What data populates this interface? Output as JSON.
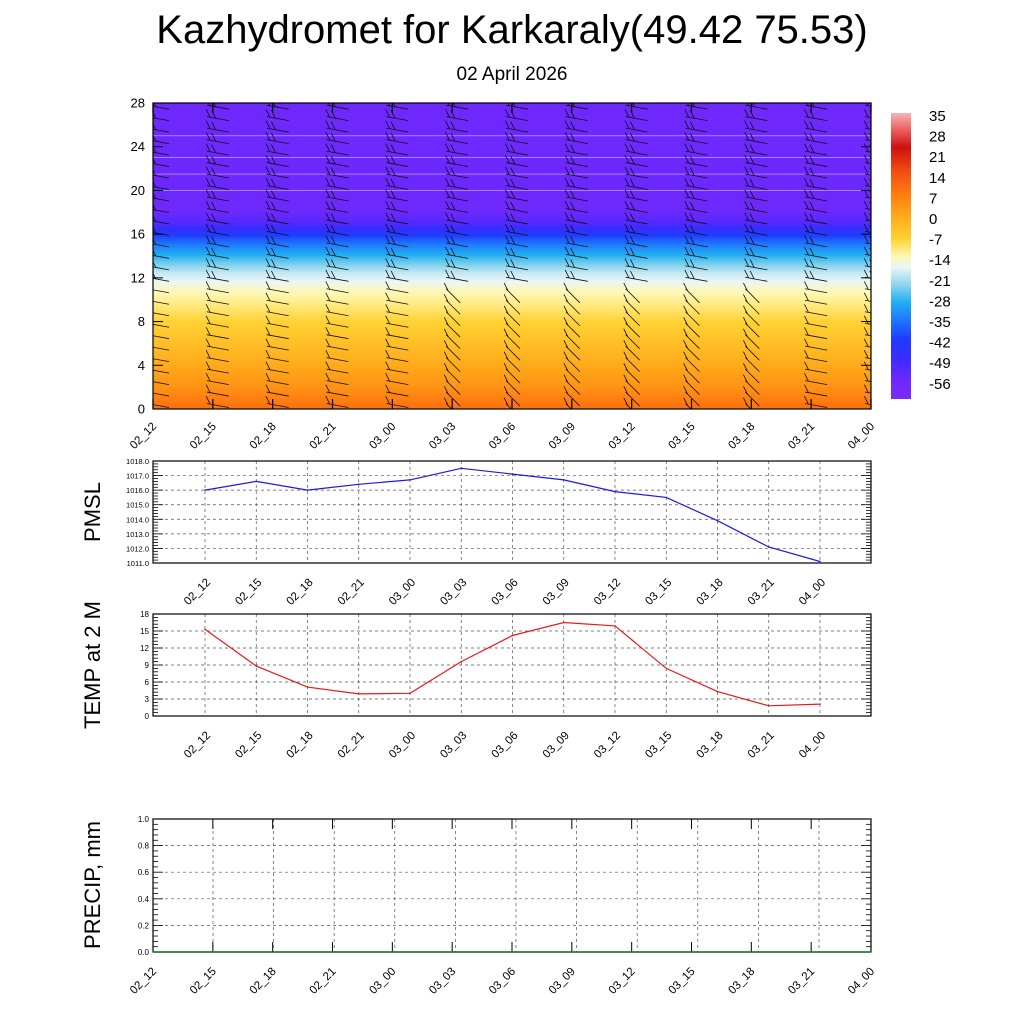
{
  "title": "Kazhydromet for Karkaraly(49.42 75.53)",
  "subtitle": "02 April 2026",
  "chart_data": [
    {
      "type": "heatmap",
      "name": "temperature-cross-section",
      "x": [
        "02_12",
        "02_15",
        "02_18",
        "02_21",
        "03_00",
        "03_03",
        "03_06",
        "03_09",
        "03_12",
        "03_15",
        "03_18",
        "03_21",
        "04_00"
      ],
      "y_ticks": [
        "0",
        "4",
        "8",
        "12",
        "16",
        "20",
        "24",
        "28"
      ],
      "ylim": [
        0,
        28
      ],
      "colorbar": {
        "labels": [
          "35",
          "28",
          "21",
          "14",
          "7",
          "0",
          "-7",
          "-14",
          "-21",
          "-28",
          "-35",
          "-42",
          "-49",
          "-56"
        ],
        "range": [
          -63,
          42
        ]
      },
      "profile": [
        {
          "level": 0,
          "value": 14
        },
        {
          "level": 2,
          "value": 8
        },
        {
          "level": 5,
          "value": 2
        },
        {
          "level": 8,
          "value": -4
        },
        {
          "level": 11,
          "value": -11
        },
        {
          "level": 12.5,
          "value": -17
        },
        {
          "level": 14,
          "value": -27
        },
        {
          "level": 15.5,
          "value": -38
        },
        {
          "level": 17,
          "value": -52
        },
        {
          "level": 18.5,
          "value": -58
        },
        {
          "level": 20,
          "value": -56
        },
        {
          "level": 24,
          "value": -57
        },
        {
          "level": 28,
          "value": -58
        }
      ]
    },
    {
      "type": "line",
      "name": "pmsl",
      "ylabel": "PMSL",
      "x": [
        "02_12",
        "02_15",
        "02_18",
        "02_21",
        "03_00",
        "03_03",
        "03_06",
        "03_09",
        "03_12",
        "03_15",
        "03_18",
        "03_21",
        "04_00"
      ],
      "values": [
        1016.0,
        1016.6,
        1016.0,
        1016.4,
        1016.7,
        1017.5,
        1017.1,
        1016.7,
        1015.9,
        1015.5,
        1013.9,
        1012.1,
        1011.1
      ],
      "y_ticks": [
        "1011.0",
        "1012.0",
        "1013.0",
        "1014.0",
        "1015.0",
        "1016.0",
        "1017.0",
        "1018.0"
      ],
      "ylim": [
        1011,
        1018
      ],
      "color": "#1a1ae6"
    },
    {
      "type": "line",
      "name": "temp-2m",
      "ylabel": "TEMP at 2 M",
      "x": [
        "02_12",
        "02_15",
        "02_18",
        "02_21",
        "03_00",
        "03_03",
        "03_06",
        "03_09",
        "03_12",
        "03_15",
        "03_18",
        "03_21",
        "04_00"
      ],
      "values": [
        15.3,
        8.8,
        5.1,
        3.9,
        4.0,
        9.6,
        14.2,
        16.5,
        15.9,
        8.4,
        4.3,
        1.8,
        2.1
      ],
      "y_ticks": [
        "0",
        "3",
        "6",
        "9",
        "12",
        "15",
        "18"
      ],
      "ylim": [
        0,
        18
      ],
      "color": "#e61a1a"
    },
    {
      "type": "line",
      "name": "precip",
      "ylabel": "PRECIP, mm",
      "x": [
        "02_12",
        "02_15",
        "02_18",
        "02_21",
        "03_00",
        "03_03",
        "03_06",
        "03_09",
        "03_12",
        "03_15",
        "03_18",
        "03_21",
        "04_00"
      ],
      "values": [
        0,
        0,
        0,
        0,
        0,
        0,
        0,
        0,
        0,
        0,
        0,
        0,
        0
      ],
      "y_ticks": [
        "0.0",
        "0.2",
        "0.4",
        "0.6",
        "0.8",
        "1.0"
      ],
      "ylim": [
        0,
        1
      ],
      "color": "#1a7a1a"
    }
  ]
}
